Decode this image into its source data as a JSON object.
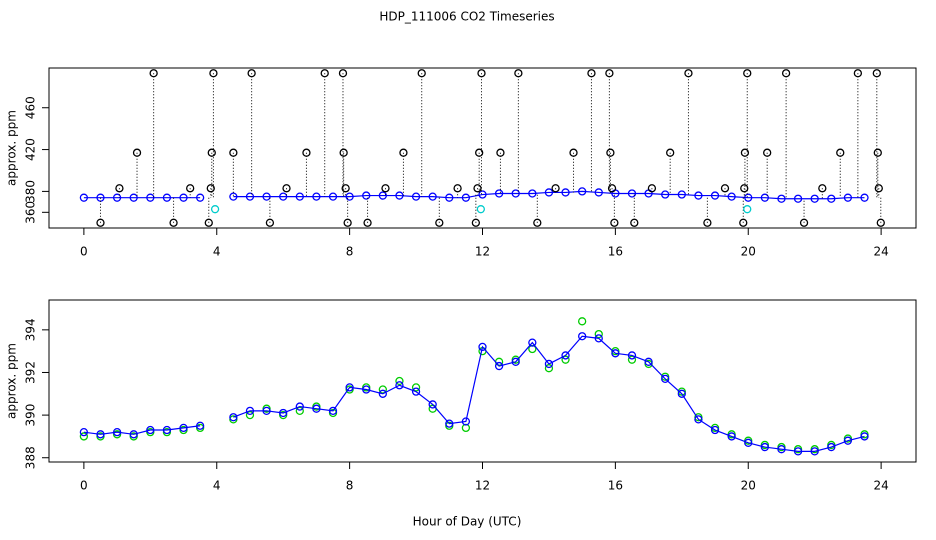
{
  "chart_data": [
    {
      "type": "scatter",
      "title": "HDP_111006  CO2 Timeseries",
      "ylabel": "approx. ppm",
      "xlim": [
        -1.05,
        25.05
      ],
      "xticks": [
        0,
        4,
        8,
        12,
        16,
        20,
        24
      ],
      "ylim": [
        345,
        498
      ],
      "yticks": [
        360,
        380,
        420,
        460
      ],
      "series": [
        {
          "color": "#0000ff",
          "line": true,
          "x": [
            0,
            0.5,
            1,
            1.5,
            2,
            2.5,
            3,
            3.5,
            4,
            4.5,
            5,
            5.5,
            6,
            6.5,
            7,
            7.5,
            8,
            8.5,
            9,
            9.5,
            10,
            10.5,
            11,
            11.5,
            12,
            12.5,
            13,
            13.5,
            14,
            14.5,
            15,
            15.5,
            16,
            16.5,
            17,
            17.5,
            18,
            18.5,
            19,
            19.5,
            20,
            20.5,
            21,
            21.5,
            22,
            22.5,
            23,
            23.5
          ],
          "values": [
            374,
            374,
            374,
            374,
            374,
            374,
            374,
            374,
            null,
            375,
            375,
            375,
            375,
            375,
            375,
            375,
            375,
            376,
            376,
            376,
            375,
            375,
            374,
            374,
            377,
            378,
            378,
            378,
            379,
            379,
            380,
            379,
            378,
            378,
            378,
            377,
            377,
            376,
            376,
            375,
            374,
            374,
            373,
            373,
            373,
            373,
            374,
            374
          ]
        },
        {
          "color": "#000000",
          "drops": true,
          "x": [
            0.5,
            1.07,
            1.6,
            2.1,
            2.7,
            3.2,
            3.76,
            3.82,
            3.85,
            3.9,
            4.5,
            5.05,
            5.6,
            6.1,
            6.7,
            7.25,
            7.8,
            7.82,
            7.88,
            7.94,
            8.54,
            9.08,
            9.62,
            10.17,
            10.7,
            11.25,
            11.8,
            11.85,
            11.9,
            11.97,
            12.54,
            13.08,
            13.65,
            14.2,
            14.74,
            15.28,
            15.82,
            15.85,
            15.9,
            15.97,
            16.57,
            17.1,
            17.65,
            18.2,
            18.77,
            19.3,
            19.85,
            19.88,
            19.9,
            19.97,
            20.57,
            21.14,
            21.68,
            22.23,
            22.77,
            23.3,
            23.87,
            23.9,
            23.93,
            23.99
          ],
          "values": [
            350,
            383,
            417,
            493,
            350,
            383,
            350,
            383,
            417,
            493,
            417,
            493,
            350,
            383,
            417,
            493,
            493,
            417,
            383,
            350,
            350,
            383,
            417,
            493,
            350,
            383,
            350,
            383,
            417,
            493,
            417,
            493,
            350,
            383,
            417,
            493,
            493,
            417,
            383,
            350,
            350,
            383,
            417,
            493,
            350,
            383,
            350,
            383,
            417,
            493,
            417,
            493,
            350,
            383,
            417,
            493,
            493,
            417,
            383,
            350
          ]
        },
        {
          "color": "#00cccc",
          "x": [
            3.95,
            11.95,
            19.97
          ],
          "values": [
            363,
            363,
            363
          ]
        }
      ]
    },
    {
      "type": "scatter",
      "ylabel": "approx. ppm",
      "xlabel": "Hour of Day (UTC)",
      "xlim": [
        -1.05,
        25.05
      ],
      "xticks": [
        0,
        4,
        8,
        12,
        16,
        20,
        24
      ],
      "ylim": [
        387.8,
        395.4
      ],
      "yticks": [
        388,
        390,
        392,
        394
      ],
      "series": [
        {
          "color": "#00cc00",
          "x": [
            0,
            0.5,
            1,
            1.5,
            2,
            2.5,
            3,
            3.5,
            4,
            4.5,
            5,
            5.5,
            6,
            6.5,
            7,
            7.5,
            8,
            8.5,
            9,
            9.5,
            10,
            10.5,
            11,
            11.5,
            12,
            12.5,
            13,
            13.5,
            14,
            14.5,
            15,
            15.5,
            16,
            16.5,
            17,
            17.5,
            18,
            18.5,
            19,
            19.5,
            20,
            20.5,
            21,
            21.5,
            22,
            22.5,
            23,
            23.5
          ],
          "values": [
            389.0,
            389.0,
            389.1,
            389.0,
            389.2,
            389.2,
            389.3,
            389.4,
            null,
            389.8,
            390.0,
            390.3,
            390.0,
            390.2,
            390.4,
            390.1,
            391.2,
            391.3,
            391.2,
            391.6,
            391.3,
            390.3,
            389.5,
            389.4,
            393.0,
            392.5,
            392.6,
            393.1,
            392.2,
            392.6,
            394.4,
            393.8,
            393.0,
            392.6,
            392.4,
            391.8,
            391.1,
            389.9,
            389.4,
            389.1,
            388.8,
            388.6,
            388.5,
            388.4,
            388.4,
            388.6,
            388.9,
            389.1
          ]
        },
        {
          "color": "#0000ff",
          "line": true,
          "x": [
            0,
            0.5,
            1,
            1.5,
            2,
            2.5,
            3,
            3.5,
            4,
            4.5,
            5,
            5.5,
            6,
            6.5,
            7,
            7.5,
            8,
            8.5,
            9,
            9.5,
            10,
            10.5,
            11,
            11.5,
            12,
            12.5,
            13,
            13.5,
            14,
            14.5,
            15,
            15.5,
            16,
            16.5,
            17,
            17.5,
            18,
            18.5,
            19,
            19.5,
            20,
            20.5,
            21,
            21.5,
            22,
            22.5,
            23,
            23.5
          ],
          "values": [
            389.2,
            389.1,
            389.2,
            389.1,
            389.3,
            389.3,
            389.4,
            389.5,
            null,
            389.9,
            390.2,
            390.2,
            390.1,
            390.4,
            390.3,
            390.2,
            391.3,
            391.2,
            391.0,
            391.4,
            391.1,
            390.5,
            389.6,
            389.7,
            393.2,
            392.3,
            392.5,
            393.4,
            392.4,
            392.8,
            393.7,
            393.6,
            392.9,
            392.8,
            392.5,
            391.7,
            391.0,
            389.8,
            389.3,
            389.0,
            388.7,
            388.5,
            388.4,
            388.3,
            388.3,
            388.5,
            388.8,
            389.0
          ]
        }
      ]
    }
  ]
}
